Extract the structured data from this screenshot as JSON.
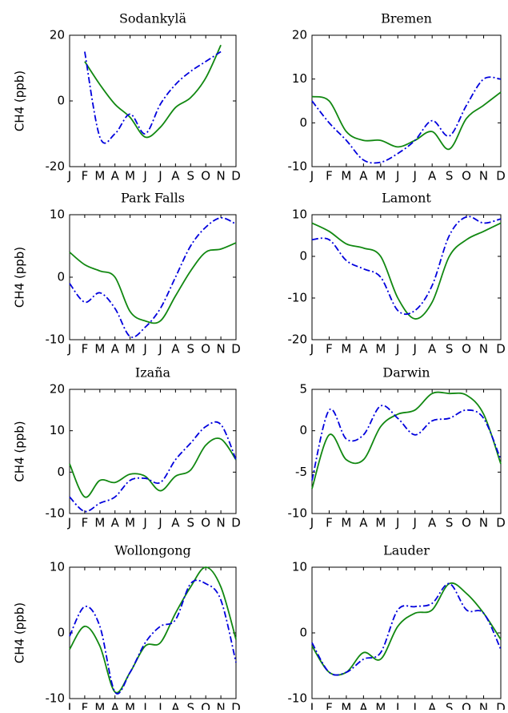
{
  "chart_data": [
    {
      "type": "line",
      "title": "Sodankylä",
      "ylabel": "CH4 (ppb)",
      "categories": [
        "J",
        "F",
        "M",
        "A",
        "M",
        "J",
        "J",
        "A",
        "S",
        "O",
        "N",
        "D"
      ],
      "ylim": [
        -20,
        20
      ],
      "yticks": [
        -20,
        0,
        20
      ],
      "series": [
        {
          "color": "#118811",
          "style": "solid",
          "values": [
            null,
            12,
            5,
            -1,
            -5,
            -11,
            -8,
            -2,
            1,
            7,
            17,
            null
          ]
        },
        {
          "color": "#0000dd",
          "style": "dashdot",
          "values": [
            null,
            15,
            -11,
            -10,
            -4,
            -10,
            -1,
            5,
            9,
            12,
            15,
            null
          ]
        }
      ]
    },
    {
      "type": "line",
      "title": "Bremen",
      "categories": [
        "J",
        "F",
        "M",
        "A",
        "M",
        "J",
        "J",
        "A",
        "S",
        "O",
        "N",
        "D"
      ],
      "ylim": [
        -10,
        20
      ],
      "yticks": [
        -10,
        0,
        10,
        20
      ],
      "series": [
        {
          "color": "#118811",
          "style": "solid",
          "values": [
            6,
            5,
            -2,
            -4,
            -4,
            -5.5,
            -4,
            -2,
            -6,
            1,
            4,
            7
          ]
        },
        {
          "color": "#0000dd",
          "style": "dashdot",
          "values": [
            5,
            0,
            -4,
            -8.5,
            -9,
            -7,
            -4,
            0.5,
            -3,
            4,
            10,
            10
          ]
        }
      ]
    },
    {
      "type": "line",
      "title": "Park Falls",
      "ylabel": "CH4 (ppb)",
      "categories": [
        "J",
        "F",
        "M",
        "A",
        "M",
        "J",
        "J",
        "A",
        "S",
        "O",
        "N",
        "D"
      ],
      "ylim": [
        -10,
        10
      ],
      "yticks": [
        -10,
        0,
        10
      ],
      "series": [
        {
          "color": "#118811",
          "style": "solid",
          "values": [
            4,
            2,
            1,
            0,
            -5.5,
            -7,
            -7,
            -3,
            1,
            4,
            4.5,
            5.5
          ]
        },
        {
          "color": "#0000dd",
          "style": "dashdot",
          "values": [
            -1,
            -4,
            -2.5,
            -5,
            -9.5,
            -8,
            -5,
            0,
            5,
            8,
            9.5,
            8.5
          ]
        }
      ]
    },
    {
      "type": "line",
      "title": "Lamont",
      "categories": [
        "J",
        "F",
        "M",
        "A",
        "M",
        "J",
        "J",
        "A",
        "S",
        "O",
        "N",
        "D"
      ],
      "ylim": [
        -20,
        10
      ],
      "yticks": [
        -20,
        -10,
        0,
        10
      ],
      "series": [
        {
          "color": "#118811",
          "style": "solid",
          "values": [
            8,
            6,
            3,
            2,
            0,
            -10,
            -15,
            -11,
            0,
            4,
            6,
            8
          ]
        },
        {
          "color": "#0000dd",
          "style": "dashdot",
          "values": [
            4,
            4,
            -1,
            -3,
            -5,
            -13,
            -13,
            -7,
            5,
            9.5,
            8,
            9
          ]
        }
      ]
    },
    {
      "type": "line",
      "title": "Izaña",
      "ylabel": "CH4 (ppb)",
      "categories": [
        "J",
        "F",
        "M",
        "A",
        "M",
        "J",
        "J",
        "A",
        "S",
        "O",
        "N",
        "D"
      ],
      "ylim": [
        -10,
        20
      ],
      "yticks": [
        -10,
        0,
        10,
        20
      ],
      "series": [
        {
          "color": "#118811",
          "style": "solid",
          "values": [
            2,
            -6,
            -2,
            -2.5,
            -0.5,
            -1,
            -4.5,
            -1,
            0.5,
            6.5,
            8,
            3
          ]
        },
        {
          "color": "#0000dd",
          "style": "dashdot",
          "values": [
            -6,
            -9.5,
            -7.5,
            -6,
            -2,
            -1.5,
            -2.5,
            3,
            7,
            11,
            11.5,
            3
          ]
        }
      ]
    },
    {
      "type": "line",
      "title": "Darwin",
      "categories": [
        "J",
        "F",
        "M",
        "A",
        "M",
        "J",
        "J",
        "A",
        "S",
        "O",
        "N",
        "D"
      ],
      "ylim": [
        -10,
        5
      ],
      "yticks": [
        -10,
        -5,
        0,
        5
      ],
      "series": [
        {
          "color": "#118811",
          "style": "solid",
          "values": [
            -7,
            -0.5,
            -3.5,
            -3.5,
            0.5,
            2,
            2.5,
            4.5,
            4.5,
            4.3,
            2,
            -4
          ]
        },
        {
          "color": "#0000dd",
          "style": "dashdot",
          "values": [
            -6,
            2.5,
            -1,
            -0.5,
            3,
            1.5,
            -0.5,
            1.2,
            1.5,
            2.5,
            1.5,
            -3.5
          ]
        }
      ]
    },
    {
      "type": "line",
      "title": "Wollongong",
      "ylabel": "CH4 (ppb)",
      "categories": [
        "J",
        "F",
        "M",
        "A",
        "M",
        "J",
        "J",
        "A",
        "S",
        "O",
        "N",
        "D"
      ],
      "ylim": [
        -10,
        10
      ],
      "yticks": [
        -10,
        0,
        10
      ],
      "series": [
        {
          "color": "#118811",
          "style": "solid",
          "values": [
            -2.5,
            1,
            -2,
            -9,
            -6,
            -2,
            -1.5,
            3,
            7,
            10,
            7,
            -1
          ]
        },
        {
          "color": "#0000dd",
          "style": "dashdot",
          "values": [
            -0.5,
            4,
            1,
            -9,
            -6,
            -1.5,
            1,
            2,
            7.5,
            7.5,
            5,
            -4.5
          ]
        }
      ]
    },
    {
      "type": "line",
      "title": "Lauder",
      "categories": [
        "J",
        "F",
        "M",
        "A",
        "M",
        "J",
        "J",
        "A",
        "S",
        "O",
        "N",
        "D"
      ],
      "ylim": [
        -10,
        10
      ],
      "yticks": [
        -10,
        0,
        10
      ],
      "series": [
        {
          "color": "#118811",
          "style": "solid",
          "values": [
            -2,
            -6,
            -6,
            -3,
            -4,
            1,
            3,
            3.5,
            7.5,
            6,
            3,
            -1
          ]
        },
        {
          "color": "#0000dd",
          "style": "dashdot",
          "values": [
            -1.5,
            -6,
            -6,
            -4,
            -3,
            3.5,
            4,
            4.5,
            7.5,
            3.5,
            3,
            -2.5
          ]
        }
      ]
    }
  ]
}
